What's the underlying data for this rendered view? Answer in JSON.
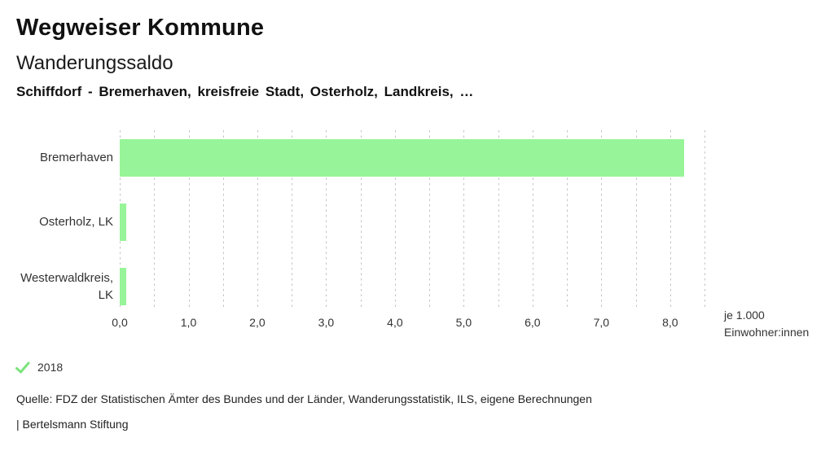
{
  "header": {
    "title": "Wegweiser Kommune",
    "subtitle": "Wanderungssaldo",
    "selection": "Schiffdorf - Bremerhaven, kreisfreie Stadt, Osterholz, Landkreis, …"
  },
  "chart_data": {
    "type": "bar",
    "orientation": "horizontal",
    "title": "Wanderungssaldo",
    "subtitle": "Schiffdorf - Bremerhaven, kreisfreie Stadt, Osterholz, Landkreis, …",
    "categories": [
      "Bremerhaven",
      "Osterholz, LK",
      "Westerwaldkreis, LK"
    ],
    "series": [
      {
        "name": "2018",
        "values": [
          8.2,
          0.1,
          0.1
        ]
      }
    ],
    "unit_label": [
      "je 1.000",
      "Einwohner:innen"
    ],
    "xlim": [
      0,
      8.5
    ],
    "xtick_step": 1.0,
    "xticklabels": [
      "0,0",
      "1,0",
      "2,0",
      "3,0",
      "4,0",
      "5,0",
      "6,0",
      "7,0",
      "8,0"
    ],
    "gridline_step": 0.5,
    "grid": "dashed-vertical",
    "bar_color": "#98f498",
    "legend_position": "bottom-left",
    "legend_check_color": "#7ce47c"
  },
  "footer": {
    "source": "Quelle: FDZ der Statistischen Ämter des Bundes und der Länder, Wanderungsstatistik, ILS, eigene Berechnungen",
    "brand": "| Bertelsmann Stiftung"
  }
}
